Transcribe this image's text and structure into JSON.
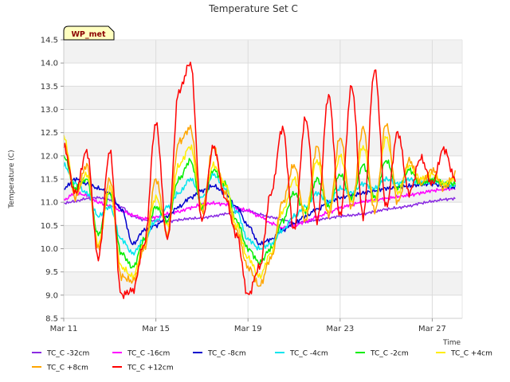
{
  "chart_data": {
    "type": "line",
    "title": "Temperature Set C",
    "xlabel": "Time",
    "ylabel": "Temperature (C)",
    "ylim": [
      8.5,
      14.5
    ],
    "xlim": [
      0,
      17.3
    ],
    "x_tick_values": [
      0,
      4,
      8,
      12,
      16
    ],
    "x_tick_labels": [
      "Mar 11",
      "Mar 15",
      "Mar 19",
      "Mar 23",
      "Mar 27"
    ],
    "y_ticks": [
      8.5,
      9.0,
      9.5,
      10.0,
      10.5,
      11.0,
      11.5,
      12.0,
      12.5,
      13.0,
      13.5,
      14.0,
      14.5
    ],
    "grid": true,
    "legend_position": "bottom",
    "badge": "WP_met",
    "x_unit": "days since Mar 11",
    "x": [
      0,
      0.5,
      1,
      1.5,
      2,
      2.5,
      3,
      3.5,
      4,
      4.5,
      5,
      5.5,
      6,
      6.5,
      7,
      7.5,
      8,
      8.5,
      9,
      9.5,
      10,
      10.5,
      11,
      11.5,
      12,
      12.5,
      13,
      13.5,
      14,
      14.5,
      15,
      15.5,
      16,
      16.5,
      17
    ],
    "series": [
      {
        "name": "TC_C -32cm",
        "color": "#8a2be2",
        "values": [
          10.98,
          11.02,
          11.08,
          11.1,
          11.05,
          10.9,
          10.7,
          10.62,
          10.6,
          10.58,
          10.62,
          10.65,
          10.66,
          10.7,
          10.75,
          10.8,
          10.82,
          10.74,
          10.68,
          10.62,
          10.55,
          10.58,
          10.62,
          10.66,
          10.7,
          10.72,
          10.75,
          10.8,
          10.85,
          10.88,
          10.92,
          10.98,
          11.02,
          11.06,
          11.08
        ]
      },
      {
        "name": "TC_C -16cm",
        "color": "#ff00ff",
        "values": [
          11.05,
          11.2,
          11.15,
          11.0,
          10.92,
          10.82,
          10.72,
          10.65,
          10.68,
          10.75,
          10.8,
          10.88,
          10.95,
          10.98,
          10.96,
          10.88,
          10.82,
          10.7,
          10.55,
          10.45,
          10.5,
          10.58,
          10.68,
          10.78,
          10.88,
          10.95,
          11.02,
          11.05,
          11.08,
          11.12,
          11.15,
          11.2,
          11.25,
          11.28,
          11.3
        ]
      },
      {
        "name": "TC_C -8cm",
        "color": "#0000cd",
        "values": [
          11.3,
          11.5,
          11.4,
          11.3,
          11.2,
          10.85,
          10.1,
          10.4,
          10.5,
          10.7,
          10.9,
          11.1,
          11.25,
          11.35,
          11.2,
          10.9,
          10.5,
          10.1,
          10.2,
          10.4,
          10.55,
          10.7,
          10.85,
          11.0,
          11.1,
          11.15,
          11.2,
          11.25,
          11.3,
          11.32,
          11.35,
          11.38,
          11.4,
          11.35,
          11.32
        ]
      },
      {
        "name": "TC_C -4cm",
        "color": "#00e5ee",
        "values": [
          11.8,
          11.4,
          11.2,
          10.7,
          10.9,
          10.2,
          9.9,
          10.2,
          10.6,
          10.9,
          11.2,
          11.5,
          11.1,
          11.6,
          11.3,
          10.8,
          10.2,
          10.0,
          10.1,
          10.4,
          10.7,
          10.9,
          11.2,
          11.0,
          11.3,
          11.2,
          11.4,
          11.3,
          11.5,
          11.4,
          11.5,
          11.4,
          11.45,
          11.4,
          11.35
        ]
      },
      {
        "name": "TC_C -2cm",
        "color": "#00ee00",
        "values": [
          12.0,
          11.3,
          11.5,
          10.3,
          11.2,
          9.9,
          9.6,
          10.2,
          10.9,
          10.6,
          11.5,
          11.9,
          10.9,
          11.7,
          11.4,
          10.6,
          10.0,
          9.7,
          10.0,
          10.6,
          11.2,
          10.8,
          11.5,
          10.9,
          11.6,
          11.1,
          11.8,
          11.1,
          11.9,
          11.3,
          11.7,
          11.4,
          11.5,
          11.4,
          11.4
        ]
      },
      {
        "name": "TC_C +4cm",
        "color": "#ffee00",
        "values": [
          12.4,
          11.2,
          11.6,
          10.1,
          11.3,
          9.6,
          9.4,
          10.1,
          11.1,
          10.5,
          11.8,
          12.2,
          10.9,
          11.8,
          11.4,
          10.5,
          9.8,
          9.4,
          9.9,
          10.8,
          11.5,
          10.8,
          11.9,
          10.8,
          12.0,
          11.0,
          12.2,
          11.0,
          12.4,
          11.2,
          11.8,
          11.5,
          11.6,
          11.4,
          11.5
        ]
      },
      {
        "name": "TC_C +8cm",
        "color": "#ffa500",
        "values": [
          12.3,
          11.1,
          11.8,
          10.0,
          11.5,
          9.4,
          9.3,
          10.0,
          11.5,
          10.3,
          12.3,
          12.6,
          10.8,
          12.2,
          11.2,
          10.4,
          9.6,
          9.2,
          9.8,
          11.0,
          11.8,
          10.6,
          12.2,
          10.7,
          12.4,
          10.9,
          12.6,
          10.8,
          12.7,
          11.0,
          11.9,
          11.4,
          11.7,
          11.3,
          11.6
        ]
      },
      {
        "name": "TC_C +12cm",
        "color": "#ff0000",
        "values": [
          12.2,
          11.2,
          12.1,
          9.8,
          12.1,
          9.0,
          9.1,
          10.1,
          12.7,
          10.2,
          13.4,
          14.0,
          10.6,
          12.2,
          11.1,
          10.3,
          9.0,
          9.6,
          11.2,
          12.6,
          10.4,
          12.8,
          10.6,
          13.3,
          10.7,
          13.5,
          10.7,
          13.85,
          10.9,
          12.5,
          11.2,
          11.95,
          11.4,
          12.15,
          11.5
        ]
      }
    ]
  }
}
